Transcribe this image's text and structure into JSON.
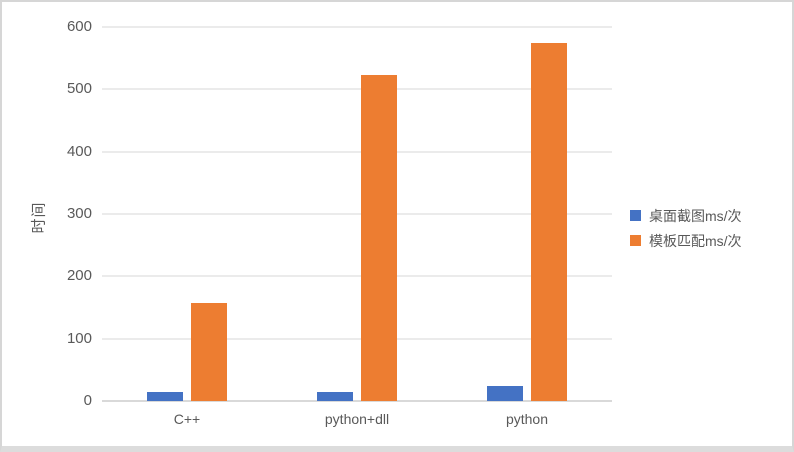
{
  "frame": {
    "background": "#ffffff",
    "border_color": "#d6d6d6",
    "bottom_strip_color": "#dcdcdc"
  },
  "chart_data": {
    "type": "bar",
    "title": "",
    "ylabel": "时间",
    "xlabel": "",
    "categories": [
      "C++",
      "python+dll",
      "python"
    ],
    "series": [
      {
        "name": "桌面截图ms/次",
        "color": "#4472C4",
        "values": [
          15,
          15,
          24
        ]
      },
      {
        "name": "模板匹配ms/次",
        "color": "#ED7D31",
        "values": [
          157,
          523,
          574
        ]
      }
    ],
    "ylim": [
      0,
      600
    ],
    "yticks": [
      0,
      100,
      200,
      300,
      400,
      500,
      600
    ],
    "grid": true,
    "legend_position": "right",
    "axis_text_color": "#595959",
    "gridline_color": "#ebebeb",
    "baseline_color": "#d9d9d9"
  }
}
